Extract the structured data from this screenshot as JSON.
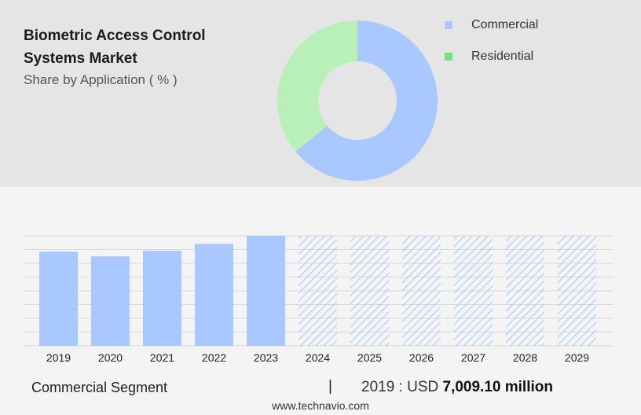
{
  "header": {
    "title": "Biometric Access Control Systems Market",
    "subtitle": "Share by Application ( % )"
  },
  "legend": {
    "items": [
      {
        "label": "Commercial",
        "color": "#a8c8ff"
      },
      {
        "label": "Residential",
        "color": "#6ee67e"
      }
    ]
  },
  "colors": {
    "commercial": "#a8c8ff",
    "residential": "#b8f0b8",
    "bar": "#a8c8ff",
    "forecast_hatch": "#a8c8ff",
    "top_background": "#e5e5e5",
    "bottom_background": "#f4f4f4"
  },
  "footer": {
    "segment_label": "Commercial Segment",
    "separator": "|",
    "year_prefix": "2019 : USD",
    "value": "7,009.10 million",
    "source": "www.technavio.com"
  },
  "chart_data": [
    {
      "type": "pie",
      "style": "donut",
      "categories": [
        "Commercial",
        "Residential"
      ],
      "values": [
        64,
        36
      ]
    },
    {
      "type": "bar",
      "categories": [
        "2019",
        "2020",
        "2021",
        "2022",
        "2023",
        "2024",
        "2025",
        "2026",
        "2027",
        "2028",
        "2029"
      ],
      "values": [
        7009.1,
        6660,
        7080,
        7590,
        8190,
        null,
        null,
        null,
        null,
        null,
        null
      ],
      "forecast": [
        false,
        false,
        false,
        false,
        false,
        true,
        true,
        true,
        true,
        true,
        true
      ],
      "ylim": [
        0,
        8190
      ],
      "grid": true
    }
  ]
}
